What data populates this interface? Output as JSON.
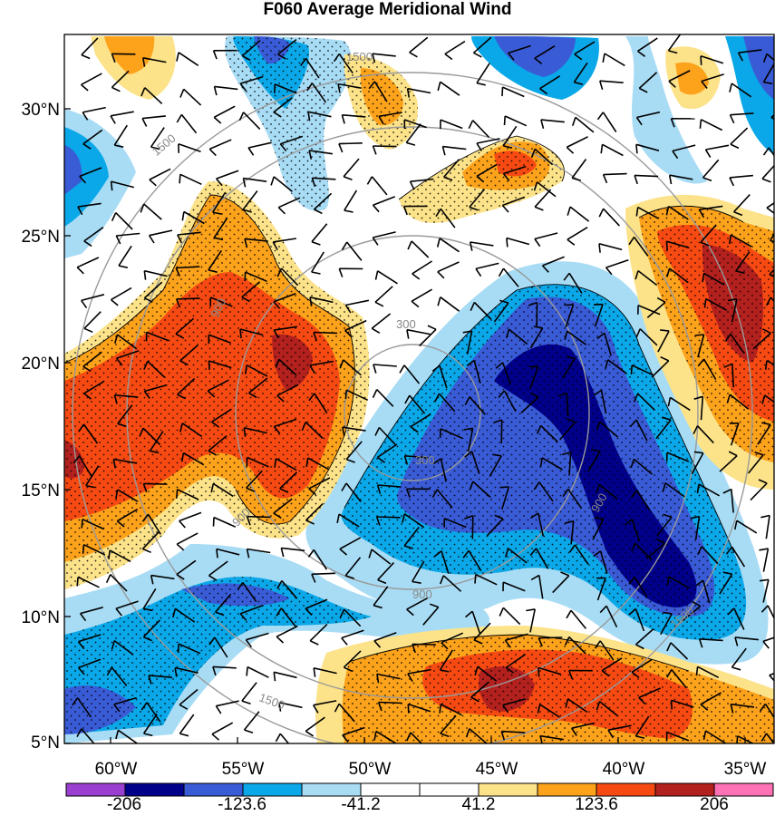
{
  "title": "F060 Average Meridional Wind",
  "latitude_labels": [
    "30°N",
    "25°N",
    "20°N",
    "15°N",
    "10°N",
    "5°N"
  ],
  "longitude_labels": [
    "60°W",
    "55°W",
    "50°W",
    "45°W",
    "40°W",
    "35°W"
  ],
  "colorbar": {
    "colors": [
      "#9b3fd1",
      "#00008b",
      "#3a5bd6",
      "#0aa8e8",
      "#a8dcf5",
      "#ffffff",
      "#ffffff",
      "#fce38a",
      "#fca21b",
      "#f64a12",
      "#b3211e",
      "#fc72b4"
    ],
    "labels": [
      "-206",
      "-123.6",
      "-41.2",
      "41.2",
      "123.6",
      "206"
    ]
  },
  "range_rings": [
    "300",
    "900",
    "1500"
  ],
  "colors": {
    "strong_positive": "#b3211e",
    "positive": "#f64a12",
    "moderate_positive": "#fca21b",
    "weak_positive": "#fce38a",
    "weak_negative": "#a8dcf5",
    "moderate_negative": "#0aa8e8",
    "negative": "#3a5bd6",
    "strong_negative": "#00008b",
    "ring": "#9a9a9a"
  }
}
